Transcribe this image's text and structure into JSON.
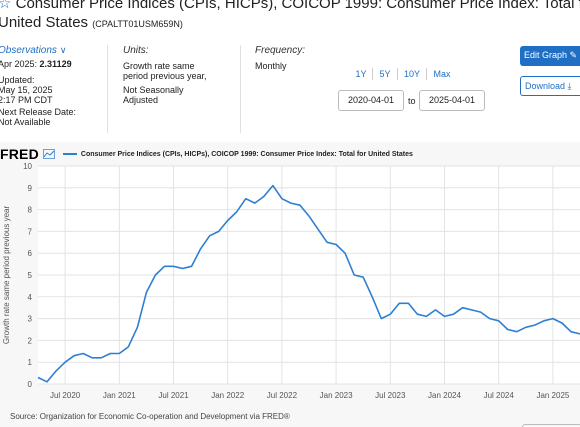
{
  "header": {
    "star_icon": "star-outline-icon",
    "title_line1": "Consumer Price Indices (CPIs, HICPs), COICOP 1999: Consumer Price Index: Total for",
    "title_line2": "United States",
    "series_code": "(CPALTT01USM659N)"
  },
  "observations": {
    "label": "Observations",
    "period": "Apr 2025:",
    "value": "2.31129",
    "updated_label": "Updated:",
    "updated_date": "May 15, 2025",
    "updated_time": "2:17 PM CDT",
    "next_release_label": "Next Release Date:",
    "next_release_value": "Not Available"
  },
  "units": {
    "label": "Units:",
    "value_line1": "Growth rate same",
    "value_line2": "period previous year,",
    "adjust_line1": "Not Seasonally",
    "adjust_line2": "Adjusted"
  },
  "frequency": {
    "label": "Frequency:",
    "value": "Monthly"
  },
  "range": {
    "buttons": [
      "1Y",
      "5Y",
      "10Y",
      "Max"
    ],
    "start": "2020-04-01",
    "to_label": "to",
    "end": "2025-04-01"
  },
  "actions": {
    "edit_label": "Edit Graph",
    "download_label": "Download"
  },
  "chart_header": {
    "logo": "FRED",
    "legend_text": "Consumer Price Indices (CPIs, HICPs), COICOP 1999: Consumer Price Index: Total for United States"
  },
  "source": "Source: Organization for Economic Co-operation and Development via FRED®",
  "colors": {
    "accent": "#1f6fc5",
    "line": "#2d7fd3"
  },
  "chart_data": {
    "type": "line",
    "ylabel": "Growth rate same period previous year",
    "ylim": [
      0,
      10
    ],
    "yticks": [
      0,
      1,
      2,
      3,
      4,
      5,
      6,
      7,
      8,
      9,
      10
    ],
    "xlim": [
      "2020-04",
      "2025-04"
    ],
    "xticks": [
      "Jul 2020",
      "Jan 2021",
      "Jul 2021",
      "Jan 2022",
      "Jul 2022",
      "Jan 2023",
      "Jul 2023",
      "Jan 2024",
      "Jul 2024",
      "Jan 2025"
    ],
    "grid": true,
    "series": [
      {
        "name": "Consumer Price Indices (CPIs, HICPs), COICOP 1999: Consumer Price Index: Total for United States",
        "x": [
          "2020-04",
          "2020-05",
          "2020-06",
          "2020-07",
          "2020-08",
          "2020-09",
          "2020-10",
          "2020-11",
          "2020-12",
          "2021-01",
          "2021-02",
          "2021-03",
          "2021-04",
          "2021-05",
          "2021-06",
          "2021-07",
          "2021-08",
          "2021-09",
          "2021-10",
          "2021-11",
          "2021-12",
          "2022-01",
          "2022-02",
          "2022-03",
          "2022-04",
          "2022-05",
          "2022-06",
          "2022-07",
          "2022-08",
          "2022-09",
          "2022-10",
          "2022-11",
          "2022-12",
          "2023-01",
          "2023-02",
          "2023-03",
          "2023-04",
          "2023-05",
          "2023-06",
          "2023-07",
          "2023-08",
          "2023-09",
          "2023-10",
          "2023-11",
          "2023-12",
          "2024-01",
          "2024-02",
          "2024-03",
          "2024-04",
          "2024-05",
          "2024-06",
          "2024-07",
          "2024-08",
          "2024-09",
          "2024-10",
          "2024-11",
          "2024-12",
          "2025-01",
          "2025-02",
          "2025-03",
          "2025-04"
        ],
        "values": [
          0.3,
          0.1,
          0.6,
          1.0,
          1.3,
          1.4,
          1.2,
          1.2,
          1.4,
          1.4,
          1.7,
          2.6,
          4.2,
          5.0,
          5.4,
          5.4,
          5.3,
          5.4,
          6.2,
          6.8,
          7.0,
          7.5,
          7.9,
          8.5,
          8.3,
          8.6,
          9.1,
          8.5,
          8.3,
          8.2,
          7.7,
          7.1,
          6.5,
          6.4,
          6.0,
          5.0,
          4.9,
          4.0,
          3.0,
          3.2,
          3.7,
          3.7,
          3.2,
          3.1,
          3.4,
          3.1,
          3.2,
          3.5,
          3.4,
          3.3,
          3.0,
          2.9,
          2.5,
          2.4,
          2.6,
          2.7,
          2.9,
          3.0,
          2.8,
          2.4,
          2.3
        ]
      }
    ]
  }
}
